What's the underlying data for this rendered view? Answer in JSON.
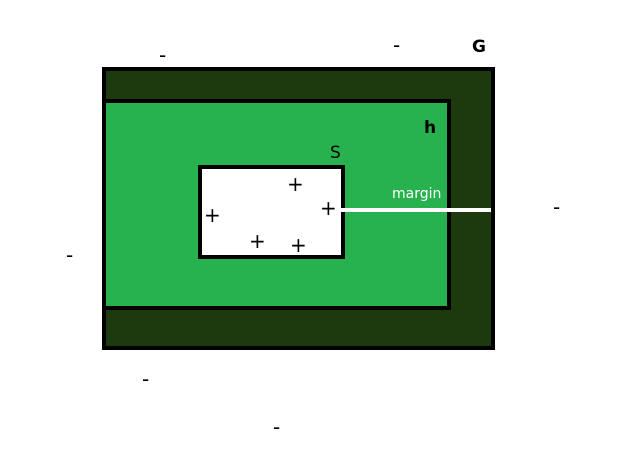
{
  "labels": {
    "outer": "G",
    "middle": "h",
    "inner": "S",
    "margin": "margin"
  },
  "symbols": {
    "negative": "-",
    "positive": "+"
  },
  "colors": {
    "outer_fill": "#1c3a0e",
    "middle_fill": "#27b24f",
    "inner_fill": "#ffffff",
    "stroke": "#000000",
    "margin_line": "#ffffff"
  }
}
